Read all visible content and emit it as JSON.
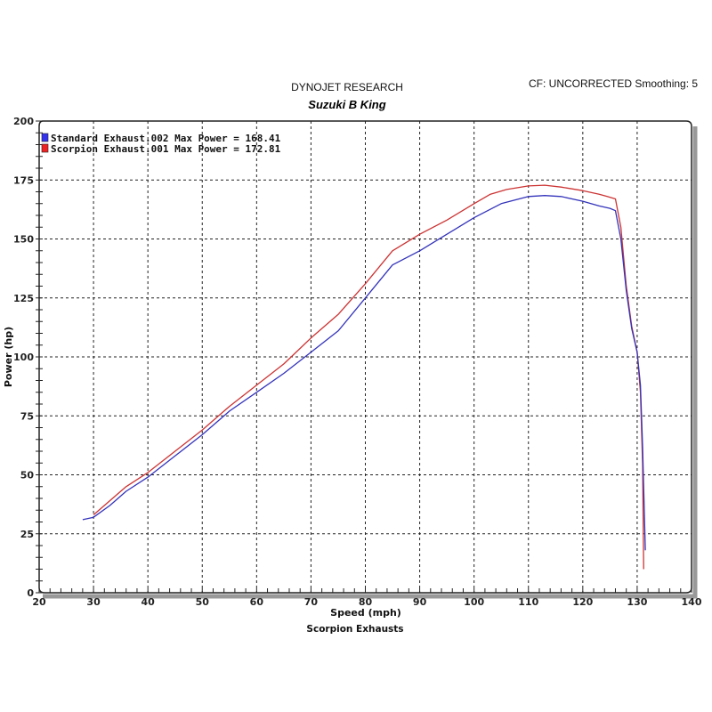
{
  "header": {
    "title": "DYNOJET RESEARCH",
    "subtitle": "Suzuki B King",
    "cf_text": "CF: UNCORRECTED  Smoothing: 5"
  },
  "colors": {
    "standard": "#3333bb",
    "scorpion": "#cc3333",
    "grid": "#222222",
    "frame_shadow": "#999999"
  },
  "chart_data": {
    "type": "line",
    "title": "DYNOJET RESEARCH",
    "subtitle": "Suzuki B King",
    "xlabel": "Speed (mph)",
    "ylabel": "Power (hp)",
    "footer": "Scorpion Exhausts",
    "xlim": [
      20,
      140
    ],
    "ylim": [
      0,
      200
    ],
    "xticks": [
      20,
      30,
      40,
      50,
      60,
      70,
      80,
      90,
      100,
      110,
      120,
      130,
      140
    ],
    "yticks": [
      0,
      25,
      50,
      75,
      100,
      125,
      150,
      175,
      200
    ],
    "grid": true,
    "legend_position": "top-left",
    "series": [
      {
        "name": "Standard Exhaust.002",
        "legend": "Standard Exhaust.002 Max Power = 168.41",
        "max_power": 168.41,
        "color": "#3333bb",
        "x": [
          28,
          30,
          33,
          36,
          40,
          45,
          50,
          55,
          60,
          65,
          70,
          75,
          80,
          85,
          90,
          95,
          100,
          105,
          110,
          113,
          116,
          120,
          123,
          125,
          126,
          127,
          128,
          129,
          130,
          130.6,
          131,
          131.3,
          131.5
        ],
        "y": [
          31,
          32,
          37,
          43,
          49,
          58,
          67,
          77,
          85,
          93,
          102,
          111,
          125,
          139,
          145,
          152,
          159,
          165,
          168,
          168.4,
          168,
          166,
          164,
          163,
          162,
          150,
          128,
          112,
          102,
          88,
          62,
          35,
          18
        ]
      },
      {
        "name": "Scorpion Exhaust.001",
        "legend": "Scorpion Exhaust.001 Max Power = 172.81",
        "max_power": 172.81,
        "color": "#cc3333",
        "x": [
          30,
          33,
          36,
          40,
          45,
          50,
          55,
          60,
          65,
          70,
          75,
          80,
          85,
          90,
          95,
          100,
          103,
          106,
          110,
          113,
          116,
          120,
          123,
          124.5,
          126,
          127,
          128,
          129,
          130,
          130.6,
          131,
          131.2
        ],
        "y": [
          33,
          39,
          45,
          51,
          60,
          69,
          79,
          88,
          97,
          108,
          118,
          131,
          145,
          152,
          158,
          165,
          169,
          171,
          172.5,
          172.8,
          172,
          170.5,
          169,
          168,
          167,
          155,
          130,
          113,
          102,
          85,
          55,
          10
        ]
      }
    ]
  },
  "legend": {
    "items": [
      {
        "label": "Standard Exhaust.002 Max Power = 168.41",
        "color": "#3333bb"
      },
      {
        "label": "Scorpion Exhaust.001 Max Power = 172.81",
        "color": "#cc3333"
      }
    ]
  }
}
